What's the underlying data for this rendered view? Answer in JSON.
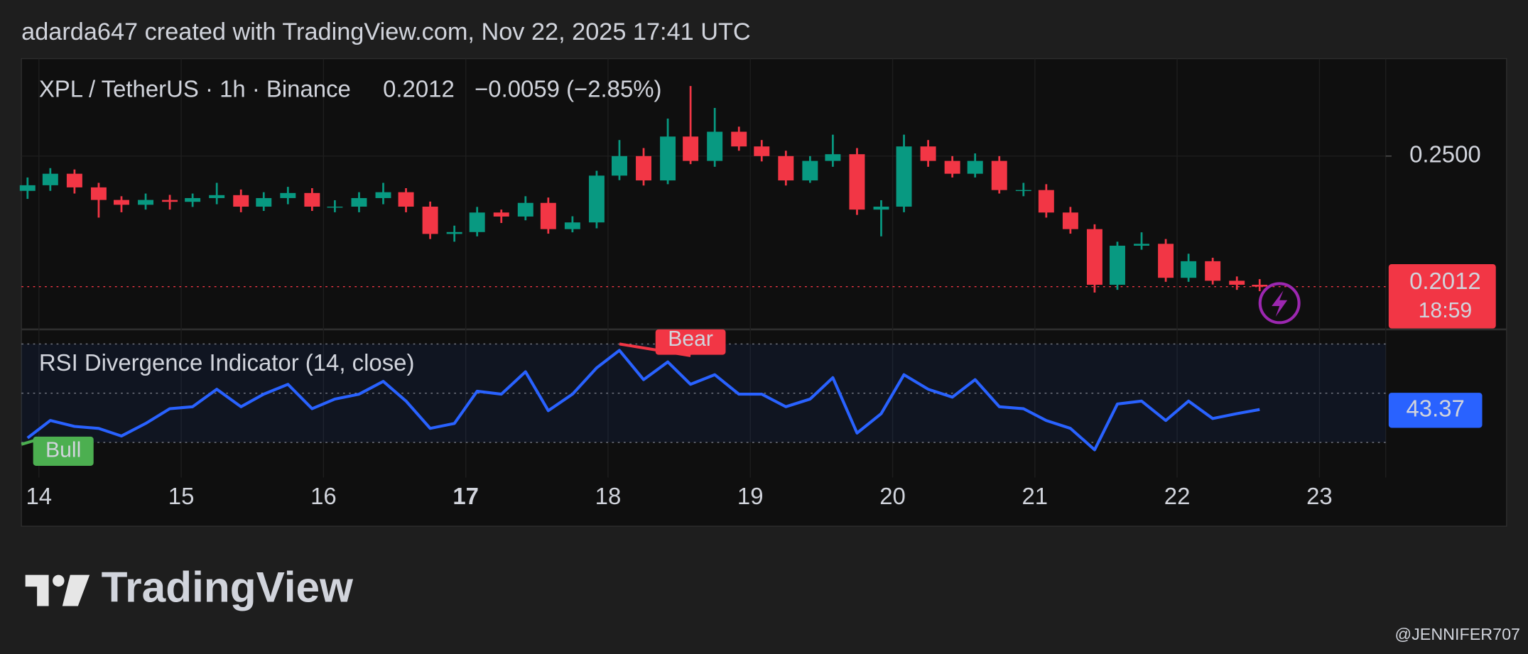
{
  "header": {
    "credit": "adarda647 created with TradingView.com, Nov 22, 2025 17:41 UTC",
    "symbol": "XPL / TetherUS · 1h · Binance",
    "change": "−0.0059 (−2.85%)",
    "countdown": "18:59"
  },
  "footer": {
    "logo": "TradingView",
    "watermark": "@JENNIFER707"
  },
  "chart_data": [
    {
      "type": "candlestick",
      "up_color": "#089981",
      "down_color": "#f23645",
      "x": [
        13.92,
        14.08,
        14.25,
        14.42,
        14.58,
        14.75,
        14.92,
        15.08,
        15.25,
        15.42,
        15.58,
        15.75,
        15.92,
        16.08,
        16.25,
        16.42,
        16.58,
        16.75,
        16.92,
        17.08,
        17.25,
        17.42,
        17.58,
        17.75,
        17.92,
        18.08,
        18.25,
        18.42,
        18.58,
        18.75,
        18.92,
        19.08,
        19.25,
        19.42,
        19.58,
        19.75,
        19.92,
        20.08,
        20.25,
        20.42,
        20.58,
        20.75,
        20.92,
        21.08,
        21.25,
        21.42,
        21.58,
        21.75,
        21.92,
        22.08,
        22.25,
        22.42,
        22.58
      ],
      "open": [
        0.237,
        0.2391,
        0.2434,
        0.2383,
        0.2336,
        0.2318,
        0.2336,
        0.2329,
        0.2343,
        0.2354,
        0.2311,
        0.2343,
        0.2362,
        0.2311,
        0.2311,
        0.2343,
        0.2365,
        0.2311,
        0.2209,
        0.2216,
        0.2289,
        0.2274,
        0.2325,
        0.2227,
        0.2252,
        0.2427,
        0.25,
        0.2409,
        0.2573,
        0.2482,
        0.2591,
        0.2536,
        0.25,
        0.2409,
        0.2482,
        0.2507,
        0.23,
        0.2311,
        0.2536,
        0.2482,
        0.2434,
        0.2482,
        0.2373,
        0.2373,
        0.2289,
        0.2227,
        0.2019,
        0.2165,
        0.2172,
        0.2045,
        0.2107,
        0.2034,
        0.2019
      ],
      "high": [
        0.242,
        0.2455,
        0.245,
        0.24,
        0.235,
        0.236,
        0.2355,
        0.236,
        0.24,
        0.2375,
        0.2365,
        0.2385,
        0.238,
        0.2335,
        0.2365,
        0.24,
        0.238,
        0.233,
        0.224,
        0.231,
        0.23,
        0.235,
        0.2345,
        0.2275,
        0.2445,
        0.256,
        0.253,
        0.264,
        0.2762,
        0.268,
        0.261,
        0.256,
        0.252,
        0.25,
        0.258,
        0.253,
        0.2335,
        0.258,
        0.256,
        0.25,
        0.251,
        0.25,
        0.24,
        0.2395,
        0.231,
        0.2245,
        0.218,
        0.2215,
        0.219,
        0.2135,
        0.212,
        0.205,
        0.204
      ],
      "low": [
        0.234,
        0.237,
        0.236,
        0.227,
        0.229,
        0.23,
        0.23,
        0.231,
        0.232,
        0.229,
        0.2295,
        0.232,
        0.2295,
        0.229,
        0.229,
        0.232,
        0.229,
        0.219,
        0.218,
        0.22,
        0.225,
        0.226,
        0.221,
        0.2215,
        0.223,
        0.241,
        0.239,
        0.2395,
        0.247,
        0.246,
        0.252,
        0.248,
        0.239,
        0.24,
        0.246,
        0.228,
        0.22,
        0.229,
        0.246,
        0.242,
        0.242,
        0.236,
        0.235,
        0.227,
        0.221,
        0.199,
        0.2,
        0.215,
        0.203,
        0.203,
        0.202,
        0.2,
        0.1995
      ],
      "close": [
        0.2391,
        0.2434,
        0.2383,
        0.2336,
        0.2318,
        0.2336,
        0.2329,
        0.2343,
        0.2354,
        0.2311,
        0.2343,
        0.2362,
        0.2311,
        0.2311,
        0.2343,
        0.2365,
        0.2311,
        0.2209,
        0.2216,
        0.2289,
        0.2274,
        0.2325,
        0.2227,
        0.2252,
        0.2427,
        0.25,
        0.2409,
        0.2573,
        0.2482,
        0.2591,
        0.2536,
        0.25,
        0.2409,
        0.2482,
        0.2507,
        0.23,
        0.2311,
        0.2536,
        0.2482,
        0.2434,
        0.2482,
        0.2373,
        0.2373,
        0.2289,
        0.2227,
        0.2019,
        0.2165,
        0.2172,
        0.2045,
        0.2107,
        0.2034,
        0.2019,
        0.2012
      ],
      "xlim": [
        13.877,
        23.466
      ],
      "ylim": [
        0.1852,
        0.2857
      ],
      "xticks": [
        14,
        15,
        16,
        17,
        18,
        19,
        20,
        21,
        22,
        23
      ],
      "bold_xtick": 17,
      "yticks": [
        {
          "value": 0.25,
          "label": "0.2500"
        }
      ],
      "grid": true
    },
    {
      "type": "line",
      "title": "RSI Divergence Indicator (14, close)",
      "color": "#2962ff",
      "x": [
        13.92,
        14.08,
        14.25,
        14.42,
        14.58,
        14.75,
        14.92,
        15.08,
        15.25,
        15.42,
        15.58,
        15.75,
        15.92,
        16.08,
        16.25,
        16.42,
        16.58,
        16.75,
        16.92,
        17.08,
        17.25,
        17.42,
        17.58,
        17.75,
        17.92,
        18.08,
        18.25,
        18.42,
        18.58,
        18.75,
        18.92,
        19.08,
        19.25,
        19.42,
        19.58,
        19.75,
        19.92,
        20.08,
        20.25,
        20.42,
        20.58,
        20.75,
        20.92,
        21.08,
        21.25,
        21.42,
        21.58,
        21.75,
        21.92,
        22.08,
        22.25,
        22.42,
        22.58
      ],
      "values": [
        31.8,
        38.9,
        36.5,
        35.7,
        32.6,
        37.7,
        43.7,
        44.5,
        51.6,
        44.5,
        49.6,
        53.6,
        43.7,
        47.6,
        49.6,
        54.8,
        46.8,
        35.7,
        37.7,
        50.8,
        49.6,
        58.7,
        42.9,
        49.6,
        60.3,
        67.4,
        55.5,
        62.7,
        53.6,
        57.5,
        49.6,
        49.6,
        44.5,
        47.6,
        56.3,
        33.8,
        41.7,
        57.5,
        51.6,
        48.4,
        55.5,
        44.5,
        43.7,
        38.9,
        35.7,
        27.0,
        45.6,
        46.8,
        38.9,
        46.8,
        39.7,
        41.7,
        43.37
      ],
      "xlim": [
        13.877,
        23.466
      ],
      "ylim": [
        19.7,
        75.9
      ],
      "levels": [
        70,
        50,
        30
      ],
      "annotations": [
        {
          "text": "Bear",
          "color": "#f23645"
        },
        {
          "text": "Bull",
          "color": "#4caf50"
        }
      ]
    }
  ]
}
